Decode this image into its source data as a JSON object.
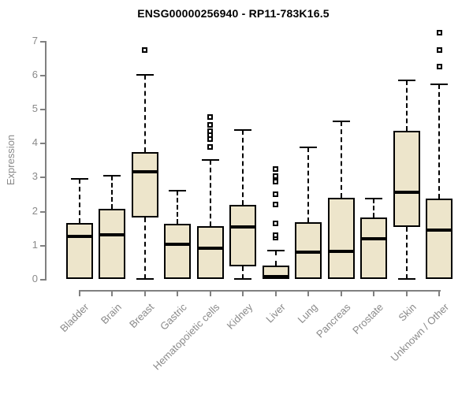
{
  "title": "ENSG00000256940 - RP11-783K16.5",
  "chart_data": {
    "type": "boxplot",
    "title": "ENSG00000256940 - RP11-783K16.5",
    "xlabel": "",
    "ylabel": "Expression",
    "ylim": [
      0,
      7
    ],
    "yticks": [
      0,
      1,
      2,
      3,
      4,
      5,
      6,
      7
    ],
    "grid": false,
    "legend": false,
    "categories": [
      "Bladder",
      "Brain",
      "Breast",
      "Gastric",
      "Hematopoietic cells",
      "Kidney",
      "Liver",
      "Lung",
      "Pancreas",
      "Prostate",
      "Skin",
      "Unknown / Other"
    ],
    "series": [
      {
        "name": "Bladder",
        "whisker_low": 0,
        "q1": 0,
        "median": 1.25,
        "q3": 1.64,
        "whisker_high": 2.93,
        "outliers": []
      },
      {
        "name": "Brain",
        "whisker_low": 0,
        "q1": 0,
        "median": 1.29,
        "q3": 2.06,
        "whisker_high": 3.04,
        "outliers": []
      },
      {
        "name": "Breast",
        "whisker_low": 0,
        "q1": 1.81,
        "median": 3.14,
        "q3": 3.72,
        "whisker_high": 6.0,
        "outliers": [
          6.72
        ]
      },
      {
        "name": "Gastric",
        "whisker_low": 0,
        "q1": 0,
        "median": 1.03,
        "q3": 1.61,
        "whisker_high": 2.6,
        "outliers": []
      },
      {
        "name": "Hematopoietic cells",
        "whisker_low": 0,
        "q1": 0,
        "median": 0.9,
        "q3": 1.56,
        "whisker_high": 3.49,
        "outliers": [
          3.87,
          4.12,
          4.22,
          4.33,
          4.53,
          4.76
        ]
      },
      {
        "name": "Kidney",
        "whisker_low": 0,
        "q1": 0.36,
        "median": 1.52,
        "q3": 2.18,
        "whisker_high": 4.38,
        "outliers": []
      },
      {
        "name": "Liver",
        "whisker_low": 0,
        "q1": 0,
        "median": 0.06,
        "q3": 0.4,
        "whisker_high": 0.83,
        "outliers": [
          1.21,
          1.29,
          1.64,
          2.18,
          2.48,
          2.87,
          3.03,
          3.22
        ]
      },
      {
        "name": "Lung",
        "whisker_low": 0,
        "q1": 0,
        "median": 0.79,
        "q3": 1.67,
        "whisker_high": 3.87,
        "outliers": []
      },
      {
        "name": "Pancreas",
        "whisker_low": 0,
        "q1": 0,
        "median": 0.8,
        "q3": 2.38,
        "whisker_high": 4.64,
        "outliers": []
      },
      {
        "name": "Prostate",
        "whisker_low": 0,
        "q1": 0,
        "median": 1.17,
        "q3": 1.81,
        "whisker_high": 2.35,
        "outliers": []
      },
      {
        "name": "Skin",
        "whisker_low": 0,
        "q1": 1.53,
        "median": 2.55,
        "q3": 4.35,
        "whisker_high": 5.84,
        "outliers": []
      },
      {
        "name": "Unknown / Other",
        "whisker_low": 0,
        "q1": 0,
        "median": 1.44,
        "q3": 2.37,
        "whisker_high": 5.72,
        "outliers": [
          6.23,
          6.73,
          7.24
        ]
      }
    ],
    "colors": {
      "box_fill": "#EDE5CB",
      "box_border": "#000000",
      "median": "#000000",
      "whisker": "#000000",
      "axis": "#808080",
      "tick_label": "#8A8A8A",
      "title": "#000000"
    }
  }
}
